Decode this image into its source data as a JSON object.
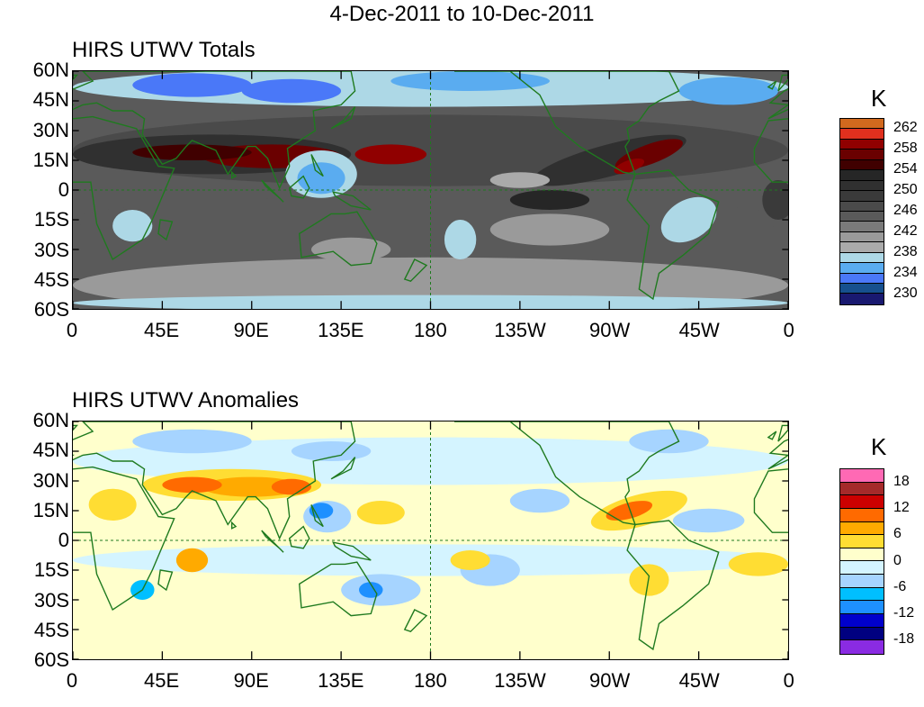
{
  "title": "4-Dec-2011 to 10-Dec-2011",
  "lat_labels": [
    "60N",
    "45N",
    "30N",
    "15N",
    "0",
    "15S",
    "30S",
    "45S",
    "60S"
  ],
  "lon_labels": [
    "0",
    "45E",
    "90E",
    "135E",
    "180",
    "135W",
    "90W",
    "45W",
    "0"
  ],
  "panels": [
    {
      "title": "HIRS UTWV Totals",
      "unit": "K",
      "colorbar_labels": [
        "262",
        "258",
        "254",
        "250",
        "246",
        "242",
        "238",
        "234",
        "230"
      ],
      "colors": [
        "#d2691e",
        "#e0301e",
        "#900000",
        "#6a0000",
        "#400000",
        "#262626",
        "#303030",
        "#3a3a3a",
        "#4a4a4a",
        "#5a5a5a",
        "#7a7a7a",
        "#9a9a9a",
        "#aaaaaa",
        "#add8e6",
        "#5aacf0",
        "#4a78f8",
        "#16508e",
        "#191970"
      ],
      "background": "#5a5a5a"
    },
    {
      "title": "HIRS UTWV Anomalies",
      "unit": "K",
      "colorbar_labels": [
        "18",
        "12",
        "6",
        "0",
        "-6",
        "-12",
        "-18"
      ],
      "colors": [
        "#ff69b4",
        "#a52a2a",
        "#cc0000",
        "#ff6a00",
        "#ffaa00",
        "#ffdd33",
        "#ffffcc",
        "#d4f4ff",
        "#a6d4ff",
        "#00bfff",
        "#1e90ff",
        "#0000cc",
        "#000080",
        "#8a2be2"
      ],
      "background": "#ffffcc"
    }
  ]
}
